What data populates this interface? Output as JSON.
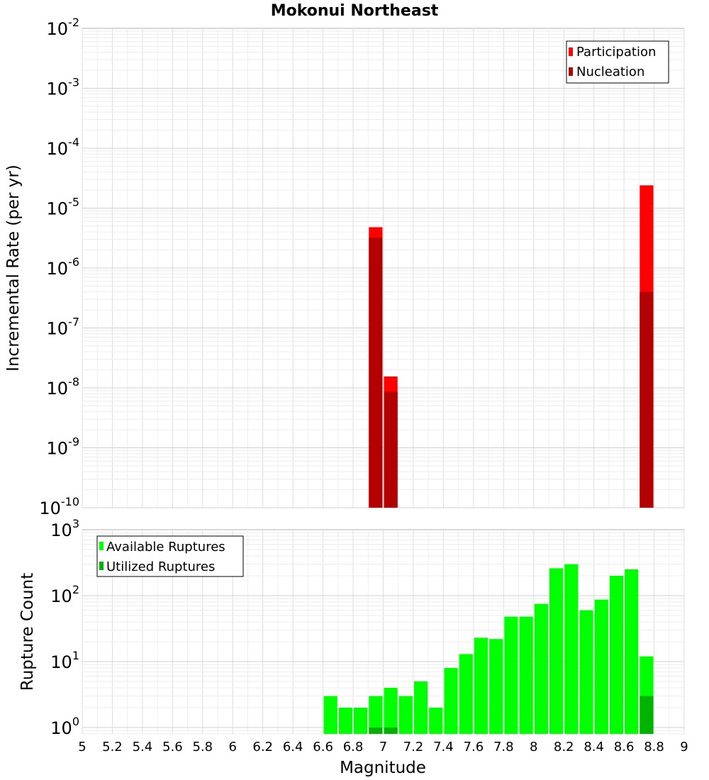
{
  "chart_data": [
    {
      "type": "bar",
      "panel": "top",
      "title": "Mokonui Northeast",
      "ylabel": "Incremental Rate (per yr)",
      "xlabel": "",
      "yscale": "log",
      "ylim": [
        1e-10,
        0.01
      ],
      "xlim": [
        5,
        9
      ],
      "bin_width": 0.1,
      "legend": {
        "position": "top-right",
        "entries": [
          "Participation",
          "Nucleation"
        ]
      },
      "colors": {
        "Participation": "#ff0000",
        "Nucleation": "#b30000"
      },
      "series": [
        {
          "name": "Participation",
          "x": [
            6.95,
            7.05,
            8.75
          ],
          "values": [
            4.8e-06,
            1.55e-08,
            2.4e-05
          ]
        },
        {
          "name": "Nucleation",
          "x": [
            6.95,
            7.05,
            8.75
          ],
          "values": [
            3.2e-06,
            8.6e-09,
            4e-07
          ]
        }
      ]
    },
    {
      "type": "bar",
      "panel": "bottom",
      "title": "",
      "ylabel": "Rupture Count",
      "xlabel": "Magnitude",
      "yscale": "log",
      "ylim": [
        0.8,
        1000
      ],
      "xlim": [
        5,
        9
      ],
      "x_ticks": [
        "5",
        "5.2",
        "5.4",
        "5.6",
        "5.8",
        "6",
        "6.2",
        "6.4",
        "6.6",
        "6.8",
        "7",
        "7.2",
        "7.4",
        "7.6",
        "7.8",
        "8",
        "8.2",
        "8.4",
        "8.6",
        "8.8",
        "9"
      ],
      "bin_width": 0.1,
      "legend": {
        "position": "top-left",
        "entries": [
          "Available Ruptures",
          "Utilized Ruptures"
        ]
      },
      "colors": {
        "Available Ruptures": "#00ff00",
        "Utilized Ruptures": "#00b300"
      },
      "series": [
        {
          "name": "Available Ruptures",
          "x": [
            6.65,
            6.75,
            6.85,
            6.95,
            7.05,
            7.15,
            7.25,
            7.35,
            7.45,
            7.55,
            7.65,
            7.75,
            7.85,
            7.95,
            8.05,
            8.15,
            8.25,
            8.35,
            8.45,
            8.55,
            8.65,
            8.75
          ],
          "values": [
            3,
            2,
            2,
            3,
            4,
            3,
            5,
            2,
            8,
            13,
            23,
            22,
            48,
            48,
            75,
            260,
            300,
            60,
            87,
            200,
            250,
            12
          ]
        },
        {
          "name": "Utilized Ruptures",
          "x": [
            6.95,
            7.05,
            8.75
          ],
          "values": [
            1,
            1,
            3
          ]
        }
      ]
    }
  ]
}
